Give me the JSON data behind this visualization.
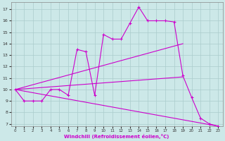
{
  "background_color": "#cce8e8",
  "grid_color": "#aacccc",
  "line_color": "#cc00cc",
  "xlabel": "Windchill (Refroidissement éolien,°C)",
  "xlim": [
    -0.5,
    23.5
  ],
  "ylim": [
    6.8,
    17.6
  ],
  "yticks": [
    7,
    8,
    9,
    10,
    11,
    12,
    13,
    14,
    15,
    16,
    17
  ],
  "xticks": [
    0,
    1,
    2,
    3,
    4,
    5,
    6,
    7,
    8,
    9,
    10,
    11,
    12,
    13,
    14,
    15,
    16,
    17,
    18,
    19,
    20,
    21,
    22,
    23
  ],
  "series_main": {
    "x": [
      0,
      1,
      2,
      3,
      4,
      5,
      6,
      7,
      8,
      9,
      10,
      11,
      12,
      13,
      14,
      15,
      16,
      17,
      18,
      19,
      20,
      21,
      22,
      23
    ],
    "y": [
      10.0,
      9.0,
      9.0,
      9.0,
      10.0,
      10.0,
      9.5,
      13.5,
      13.3,
      9.5,
      14.8,
      14.4,
      14.4,
      15.8,
      17.2,
      16.0,
      16.0,
      16.0,
      15.9,
      11.2,
      9.3,
      7.5,
      7.0,
      6.8
    ]
  },
  "series_lines": [
    {
      "x": [
        0,
        19
      ],
      "y": [
        10.0,
        14.0
      ]
    },
    {
      "x": [
        0,
        19
      ],
      "y": [
        10.0,
        11.1
      ]
    },
    {
      "x": [
        0,
        23
      ],
      "y": [
        10.0,
        6.8
      ]
    }
  ]
}
